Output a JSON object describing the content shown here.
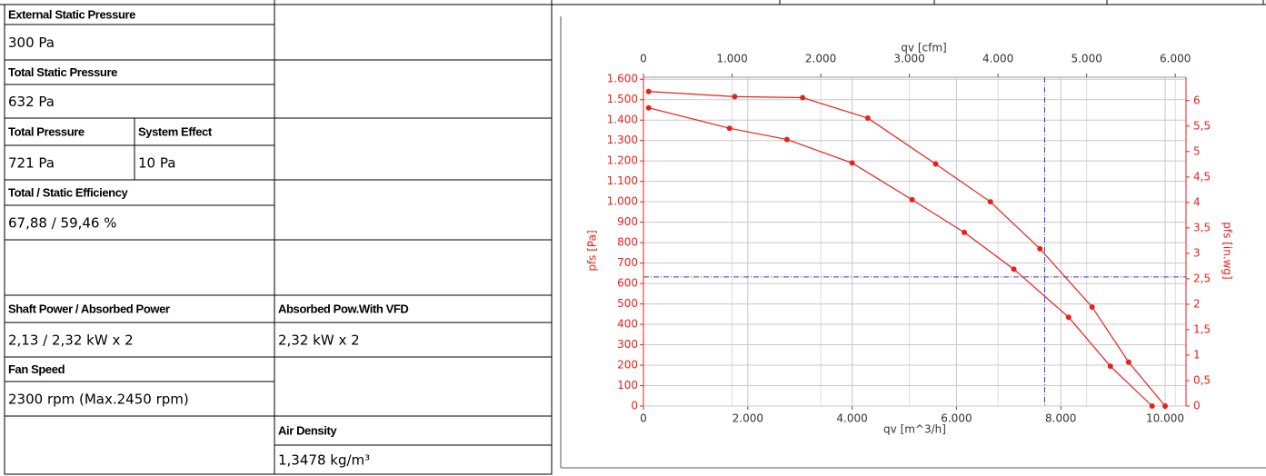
{
  "table": {
    "rows": [
      [
        "External Static Pressure"
      ],
      [
        "300 Pa"
      ],
      [
        "Total Static Pressure"
      ],
      [
        "632 Pa"
      ],
      [
        "Total Pressure",
        "System Effect"
      ],
      [
        "721 Pa",
        "10 Pa"
      ],
      [
        "Total / Static Efficiency"
      ],
      [
        "67,88 / 59,46 %"
      ],
      [
        "Shaft Power / Absorbed Power",
        "Absorbed Pow.With VFD"
      ],
      [
        "2,13 / 2,32 kW x 2",
        "2,32 kW x 2"
      ],
      [
        "Fan Speed"
      ],
      [
        "2300 rpm (Max.2450 rpm)"
      ],
      [
        "Air Density"
      ],
      [
        "1,3478 kg/m³"
      ]
    ]
  },
  "chart_data": {
    "type": "line",
    "x_label": "qv [m^3/h]",
    "x2_label": "qv [cfm]",
    "y_label": "pfs [Pa]",
    "y2_label": "pfs [in.wg]",
    "xlim": [
      0,
      10400
    ],
    "xticks": [
      0,
      {
        "value": 2000,
        "label": "2.000"
      },
      {
        "value": 4000,
        "label": "4.000"
      },
      {
        "value": 6000,
        "label": "6.000"
      },
      {
        "value": 8000,
        "label": "8.000"
      },
      {
        "value": 10000,
        "label": "10.000"
      }
    ],
    "x2lim": [
      0,
      6121
    ],
    "x2ticks": [
      0,
      {
        "value": 1000,
        "label": "1.000"
      },
      {
        "value": 2000,
        "label": "2.000"
      },
      {
        "value": 3000,
        "label": "3.000"
      },
      {
        "value": 4000,
        "label": "4.000"
      },
      {
        "value": 5000,
        "label": "5.000"
      },
      {
        "value": 6000,
        "label": "6.000"
      }
    ],
    "ylim": [
      0,
      1610
    ],
    "yticks": [
      0,
      100,
      200,
      300,
      400,
      500,
      600,
      700,
      800,
      900,
      {
        "value": 1000,
        "label": "1.000"
      },
      {
        "value": 1100,
        "label": "1.100"
      },
      {
        "value": 1200,
        "label": "1.200"
      },
      {
        "value": 1300,
        "label": "1.300"
      },
      {
        "value": 1400,
        "label": "1.400"
      },
      {
        "value": 1500,
        "label": "1.500"
      },
      {
        "value": 1600,
        "label": "1.600"
      }
    ],
    "y2lim": [
      0,
      6.46
    ],
    "y2ticks": [
      0,
      {
        "value": 0.5,
        "label": "0,5"
      },
      1,
      {
        "value": 1.5,
        "label": "1,5"
      },
      2,
      {
        "value": 2.5,
        "label": "2,5"
      },
      3,
      {
        "value": 3.5,
        "label": "3,5"
      },
      4,
      {
        "value": 4.5,
        "label": "4,5"
      },
      5,
      {
        "value": 5.5,
        "label": "5,5"
      },
      6
    ],
    "grid": true,
    "series": [
      {
        "color": "#e8201c",
        "x": [
          100,
          1750,
          3050,
          4300,
          5600,
          6650,
          7600,
          8600,
          9300,
          10000
        ],
        "values": [
          1540,
          1515,
          1510,
          1410,
          1185,
          1000,
          770,
          485,
          215,
          0
        ]
      },
      {
        "color": "#e8201c",
        "x": [
          100,
          1650,
          2750,
          4000,
          5150,
          6150,
          7100,
          8150,
          8950,
          9750
        ],
        "values": [
          1460,
          1360,
          1305,
          1190,
          1010,
          850,
          670,
          435,
          195,
          0
        ]
      }
    ],
    "operating_point": {
      "x": 7690,
      "y": 632,
      "color": "#3333cc"
    }
  }
}
